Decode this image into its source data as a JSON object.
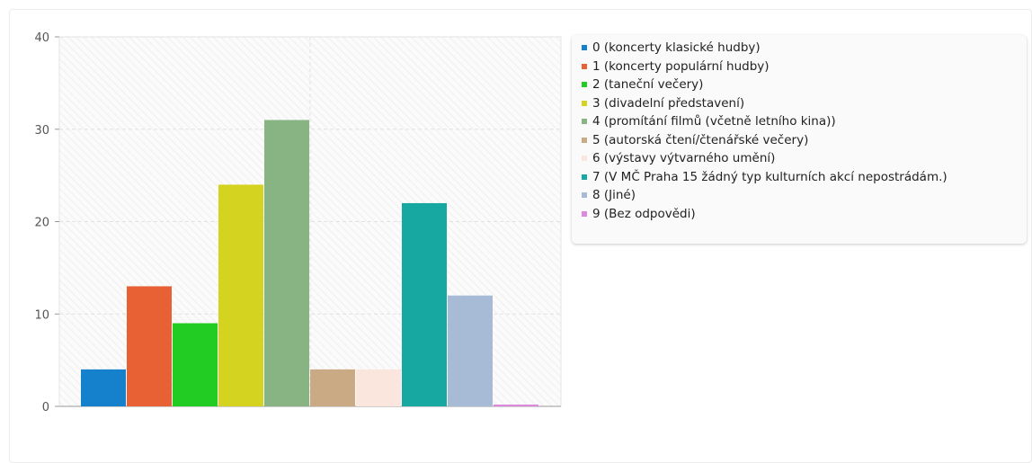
{
  "chart_data": {
    "type": "bar",
    "ylim": [
      0,
      40
    ],
    "yticks": [
      0,
      10,
      20,
      30,
      40
    ],
    "grid": true,
    "legend_position": "right",
    "series": [
      {
        "name": "0 (koncerty klasické hudby)",
        "value": 4,
        "color": "#1580cc"
      },
      {
        "name": "1 (koncerty populární hudby)",
        "value": 13,
        "color": "#e86134"
      },
      {
        "name": "2 (taneční večery)",
        "value": 9,
        "color": "#22cc22"
      },
      {
        "name": "3 (divadelní představení)",
        "value": 24,
        "color": "#d4d420"
      },
      {
        "name": "4 (promítání filmů (včetně letního kina))",
        "value": 31,
        "color": "#88b483"
      },
      {
        "name": "5 (autorská čtení/čtenářské večery)",
        "value": 4,
        "color": "#c9aa84"
      },
      {
        "name": "6 (výstavy výtvarného umění)",
        "value": 4,
        "color": "#fbe6de"
      },
      {
        "name": "7 (V MČ Praha 15 žádný typ kulturních akcí nepostrádám.)",
        "value": 22,
        "color": "#18a8a2"
      },
      {
        "name": "8 (Jiné)",
        "value": 12,
        "color": "#a7bad6"
      },
      {
        "name": "9 (Bez odpovědi)",
        "value": 0,
        "color": "#dd88dd"
      }
    ]
  }
}
